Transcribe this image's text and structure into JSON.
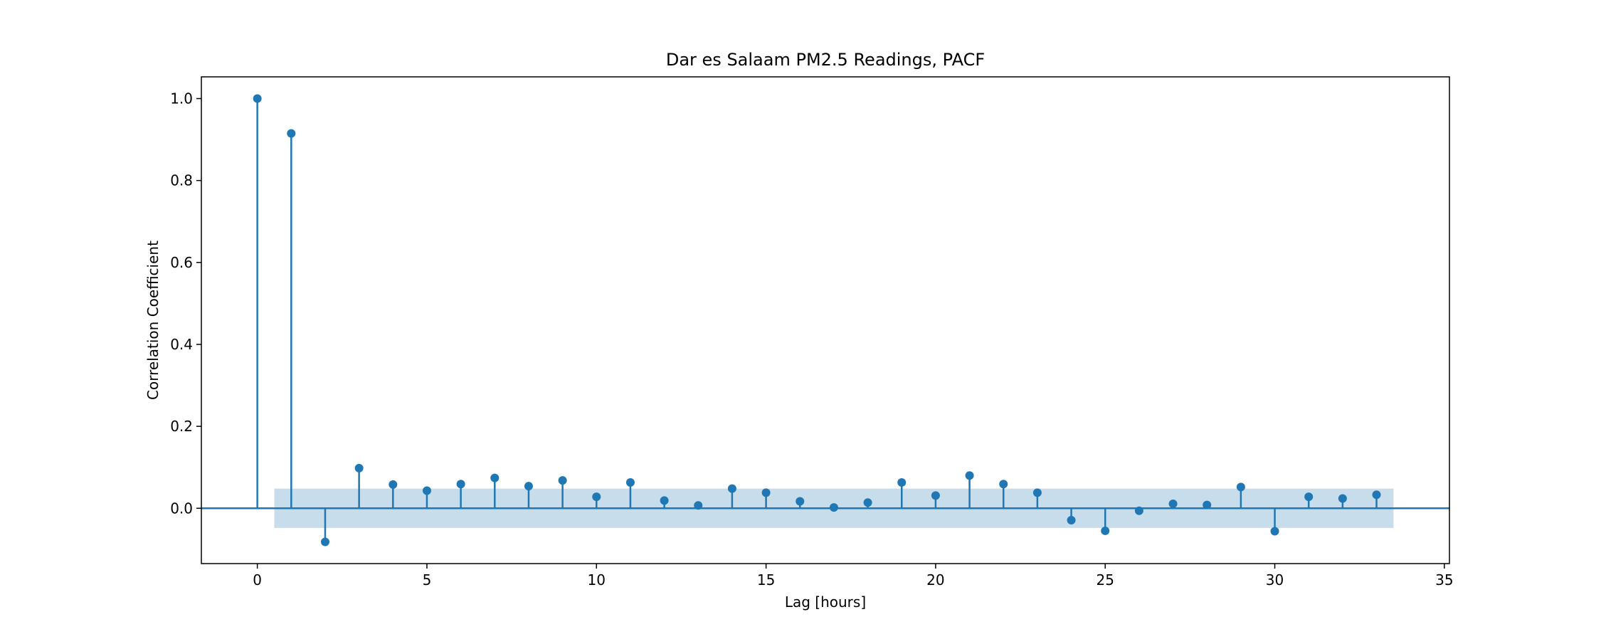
{
  "chart_data": {
    "type": "stem",
    "title": "Dar es Salaam PM2.5 Readings, PACF",
    "xlabel": "Lag [hours]",
    "ylabel": "Correlation Coefficient",
    "xlim": [
      -1.65,
      35.15
    ],
    "ylim": [
      -0.135,
      1.053
    ],
    "xticks": [
      0,
      5,
      10,
      15,
      20,
      25,
      30,
      35
    ],
    "yticks": [
      -0.2,
      0.0,
      0.2,
      0.4,
      0.6,
      0.8,
      1.0
    ],
    "ytick_labels": [
      "0.0",
      "0.2",
      "0.4",
      "0.6",
      "0.8",
      "1.0"
    ],
    "ytick_values": [
      0.0,
      0.2,
      0.4,
      0.6,
      0.8,
      1.0
    ],
    "lags": [
      0,
      1,
      2,
      3,
      4,
      5,
      6,
      7,
      8,
      9,
      10,
      11,
      12,
      13,
      14,
      15,
      16,
      17,
      18,
      19,
      20,
      21,
      22,
      23,
      24,
      25,
      26,
      27,
      28,
      29,
      30,
      31,
      32,
      33
    ],
    "values": [
      1.0,
      0.915,
      -0.082,
      0.098,
      0.058,
      0.043,
      0.059,
      0.074,
      0.054,
      0.068,
      0.028,
      0.063,
      0.019,
      0.007,
      0.048,
      0.038,
      0.017,
      0.002,
      0.014,
      0.063,
      0.031,
      0.08,
      0.059,
      0.038,
      -0.029,
      -0.055,
      -0.006,
      0.011,
      0.008,
      0.052,
      -0.056,
      0.028,
      0.024,
      0.033
    ],
    "confidence_band": {
      "x_start": 0.5,
      "x_end": 33.5,
      "lower": -0.048,
      "upper": 0.048
    },
    "grid": false,
    "colors": {
      "series": "#1f77b4",
      "band": "#1f77b4",
      "band_opacity": 0.25,
      "axes": "#000000"
    }
  }
}
